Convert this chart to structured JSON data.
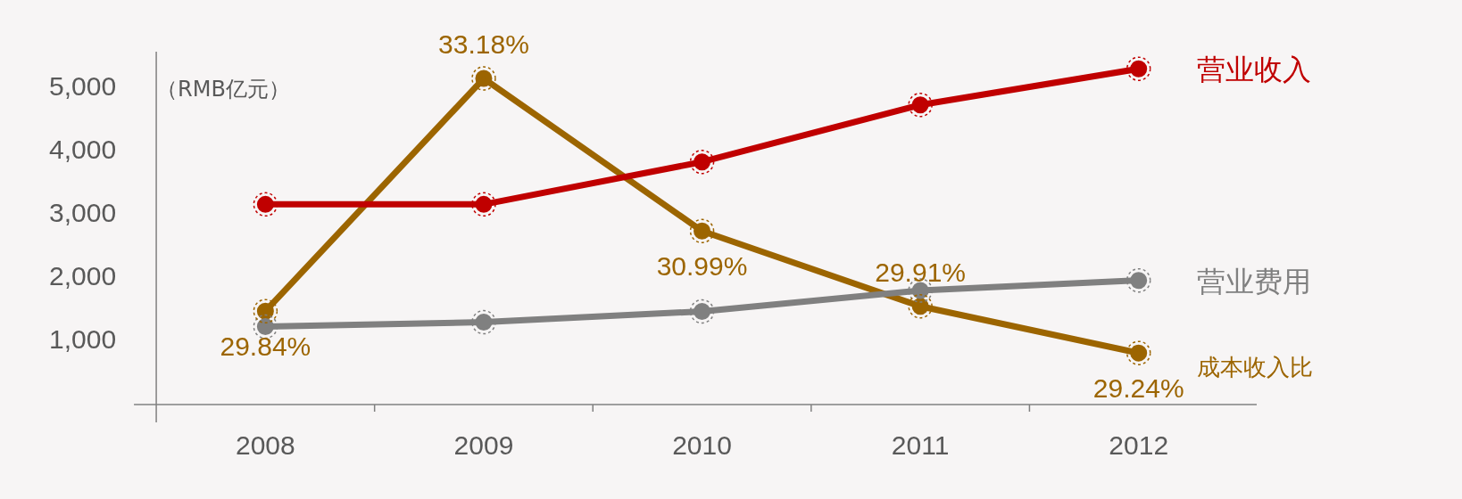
{
  "chart_data": {
    "type": "line",
    "ylabel": "（RMB亿元）",
    "categories": [
      "2008",
      "2009",
      "2010",
      "2011",
      "2012"
    ],
    "series": [
      {
        "name": "营业收入",
        "color": "#c00000",
        "values": [
          3160,
          3160,
          3830,
          4730,
          5300
        ]
      },
      {
        "name": "营业费用",
        "color": "#808080",
        "values": [
          1230,
          1300,
          1470,
          1800,
          1960
        ]
      },
      {
        "name": "成本收入比",
        "color": "#9c6500",
        "axis": "y2",
        "values": [
          29.84,
          33.18,
          30.99,
          29.91,
          29.24
        ],
        "value_labels": [
          "29.84%",
          "33.18%",
          "30.99%",
          "29.91%",
          "29.24%"
        ]
      }
    ],
    "ylim": [
      0,
      5500
    ],
    "yticks": [
      {
        "value": 1000,
        "label": "1,000"
      },
      {
        "value": 2000,
        "label": "2,000"
      },
      {
        "value": 3000,
        "label": "3,000"
      },
      {
        "value": 4000,
        "label": "4,000"
      },
      {
        "value": 5000,
        "label": "5,000"
      }
    ],
    "tick_labels": "xy",
    "grid": false,
    "legend": false,
    "marker": "circle",
    "line_style": "solid"
  }
}
